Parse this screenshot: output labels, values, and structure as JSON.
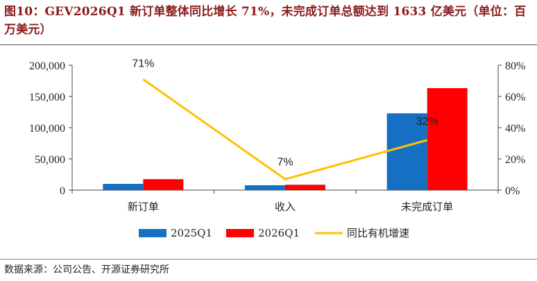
{
  "title": "图10：GEV2026Q1 新订单整体同比增长 71%，未完成订单总额达到 1633 亿美元（单位：百万美元）",
  "source": "数据来源：公司公告、开源证券研究所",
  "colors": {
    "series_2025": "#1570C3",
    "series_2026": "#FF0000",
    "yoy_line": "#FFC000",
    "title": "#8B1A1A"
  },
  "chart_data": {
    "type": "bar",
    "categories": [
      "新订单",
      "收入",
      "未完成订单"
    ],
    "series": [
      {
        "name": "2025Q1",
        "type": "bar",
        "axis": "left",
        "values": [
          10000,
          7800,
          123000
        ]
      },
      {
        "name": "2026Q1",
        "type": "bar",
        "axis": "left",
        "values": [
          17500,
          8600,
          163300
        ]
      },
      {
        "name": "同比有机增速",
        "type": "line",
        "axis": "right",
        "values": [
          71,
          7,
          32
        ]
      }
    ],
    "data_labels": [
      "71%",
      "7%",
      "32%"
    ],
    "y_left": {
      "lim": [
        0,
        200000
      ],
      "ticks": [
        "0",
        "50,000",
        "100,000",
        "150,000",
        "200,000"
      ],
      "tick_values": [
        0,
        50000,
        100000,
        150000,
        200000
      ]
    },
    "y_right": {
      "lim": [
        0,
        80
      ],
      "ticks": [
        "0%",
        "20%",
        "40%",
        "60%",
        "80%"
      ],
      "tick_values": [
        0,
        20,
        40,
        60,
        80
      ]
    },
    "legend_position": "bottom",
    "grid": false
  }
}
